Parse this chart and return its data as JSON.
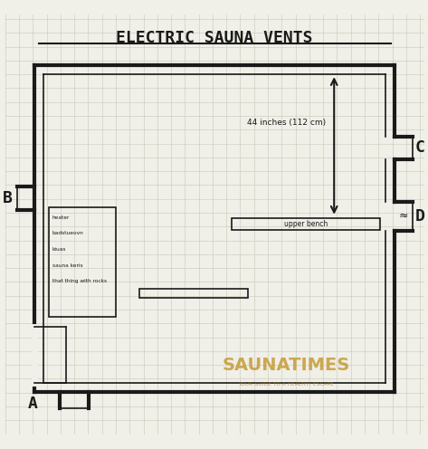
{
  "title": "ELECTRIC SAUNA VENTS",
  "background_color": "#f0efe8",
  "grid_color": "#c8c8b8",
  "wall_color": "#1a1a1a",
  "label_A": "A",
  "label_B": "B",
  "label_C": "C",
  "label_D": "D",
  "arrow_text": "44 inches (112 cm)",
  "upper_bench_text": "upper bench",
  "heater_labels": [
    "heater",
    "badstueovn",
    "kiuas",
    "sauna keris",
    "that thing with rocks"
  ],
  "watermark_text": "SAUNATIMES",
  "watermark_sub": "YOUR GUIDE TO A HEALTHY ESCAPE",
  "watermark_color": "#c8a040",
  "watermark_sub_color": "#a08030"
}
